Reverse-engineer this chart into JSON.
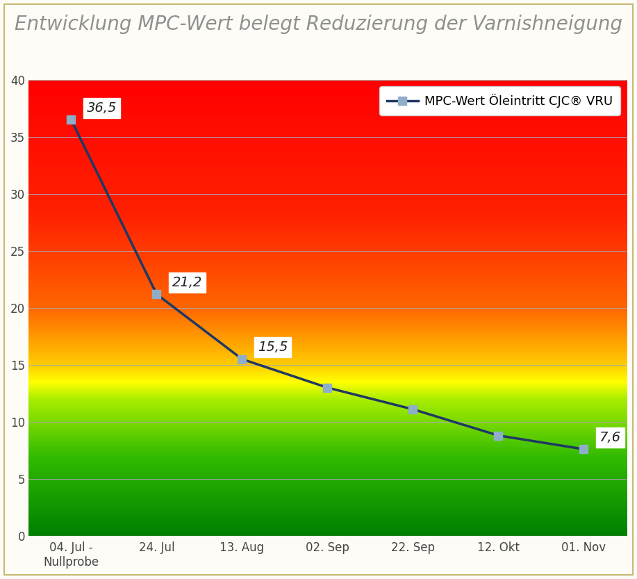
{
  "title": "Entwicklung MPC-Wert belegt Reduzierung der Varnishneigung",
  "title_fontsize": 20,
  "title_color": "#909090",
  "title_style": "italic",
  "x_labels": [
    "04. Jul -\nNullprobe",
    "24. Jul",
    "13. Aug",
    "02. Sep",
    "22. Sep",
    "12. Okt",
    "01. Nov"
  ],
  "y_values": [
    36.5,
    21.2,
    15.5,
    13.0,
    11.1,
    8.8,
    7.6
  ],
  "ann_idx_list": [
    0,
    1,
    2,
    6
  ],
  "annotations": [
    "36,5",
    "21,2",
    "15,5",
    "7,6"
  ],
  "ylim": [
    0,
    40
  ],
  "yticks": [
    0,
    5,
    10,
    15,
    20,
    25,
    30,
    35,
    40
  ],
  "line_color": "#1f3864",
  "line_width": 2.5,
  "marker_color": "#8faec8",
  "marker_size": 9,
  "legend_label": "MPC-Wert Öleintritt CJC® VRU",
  "background_outer": "#fefcf6",
  "border_color": "#c8b870",
  "gradient_stops": [
    {
      "y": 0,
      "color": "#008000"
    },
    {
      "y": 7,
      "color": "#33bb00"
    },
    {
      "y": 12,
      "color": "#aaee00"
    },
    {
      "y": 13.5,
      "color": "#ffff00"
    },
    {
      "y": 15,
      "color": "#ffcc00"
    },
    {
      "y": 20,
      "color": "#ff6600"
    },
    {
      "y": 28,
      "color": "#ff2200"
    },
    {
      "y": 40,
      "color": "#ff0000"
    }
  ]
}
